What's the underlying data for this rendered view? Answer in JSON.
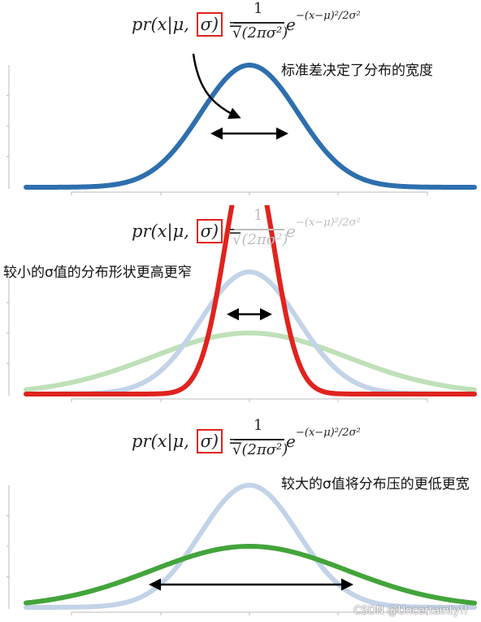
{
  "panels": [
    {
      "caption": "标准差决定了分布的宽度",
      "formula": {
        "lhs": "pr(x|μ, σ) =",
        "numerator": "1",
        "denominator": "√(2πσ²)",
        "exp_base": "e",
        "exponent": "−(x−μ)²/2σ²",
        "faded": false
      },
      "curves": [
        {
          "name": "sigma-base",
          "sigma": 1.0,
          "color": "#2e6fae",
          "opacity": 1.0
        }
      ]
    },
    {
      "caption": "较小的σ值的分布形状更高更窄",
      "formula": {
        "lhs": "pr(x|μ, σ) =",
        "numerator": "1",
        "denominator": "√(2πσ²)",
        "exp_base": "e",
        "exponent": "−(x−μ)²/2σ²",
        "faded": true
      },
      "curves": [
        {
          "name": "sigma-large-faded",
          "sigma": 2.0,
          "color": "#bfe0b8",
          "opacity": 1.0
        },
        {
          "name": "sigma-base-faded",
          "sigma": 1.0,
          "color": "#c3d3e8",
          "opacity": 1.0
        },
        {
          "name": "sigma-small",
          "sigma": 0.5,
          "color": "#e0231e",
          "opacity": 1.0
        }
      ]
    },
    {
      "caption": "较大的σ值将分布压的更低更宽",
      "formula": {
        "lhs": "pr(x|μ, σ) =",
        "numerator": "1",
        "denominator": "√(2πσ²)",
        "exp_base": "e",
        "exponent": "−(x−μ)²/2σ²",
        "faded": false
      },
      "curves": [
        {
          "name": "sigma-base-faded",
          "sigma": 1.0,
          "color": "#c3d3e8",
          "opacity": 1.0
        },
        {
          "name": "sigma-large",
          "sigma": 2.0,
          "color": "#43a43b",
          "opacity": 1.0
        }
      ]
    }
  ],
  "watermark": "CSDN @Uncertainty!!",
  "colors": {
    "highlight_box": "#e0231e",
    "arrow": "#000000",
    "axis": "#bbbbbb"
  }
}
